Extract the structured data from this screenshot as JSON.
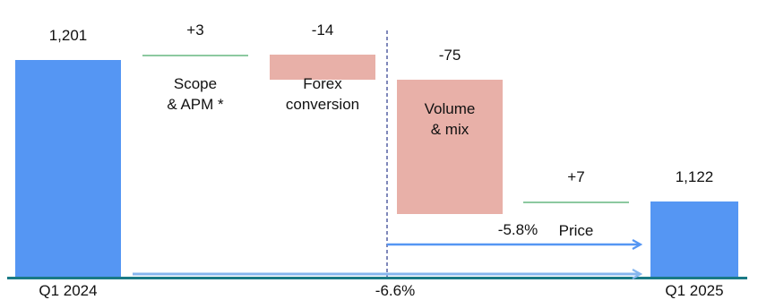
{
  "chart_data": {
    "type": "bar",
    "subtype": "waterfall",
    "categories": [
      "Q1 2024",
      "Scope & APM *",
      "Forex conversion",
      "Volume & mix",
      "Price",
      "Q1 2025"
    ],
    "steps": [
      {
        "label_lines": [
          "Q1 2024"
        ],
        "kind": "total",
        "value": 1201,
        "value_label": "1,201"
      },
      {
        "label_lines": [
          "Scope",
          "& APM *"
        ],
        "kind": "delta",
        "value": 3,
        "value_label": "+3"
      },
      {
        "label_lines": [
          "Forex",
          "conversion"
        ],
        "kind": "delta",
        "value": -14,
        "value_label": "-14"
      },
      {
        "label_lines": [
          "Volume",
          "& mix"
        ],
        "kind": "delta",
        "value": -75,
        "value_label": "-75"
      },
      {
        "label_lines": [
          "Price"
        ],
        "kind": "delta",
        "value": 7,
        "value_label": "+7"
      },
      {
        "label_lines": [
          "Q1 2025"
        ],
        "kind": "total",
        "value": 1122,
        "value_label": "1,122"
      }
    ],
    "y_baseline": 1080,
    "y_top": 1210,
    "grid": false,
    "annotations": [
      {
        "text": "-5.8%",
        "from_step": 3,
        "to_step": 5,
        "kind": "arrow",
        "placement": "upper"
      },
      {
        "text": "-6.6%",
        "from_step": 0,
        "to_step": 5,
        "kind": "arrow",
        "placement": "baseline"
      }
    ],
    "colors": {
      "total": "#5596f3",
      "increase": "#8cc9a0",
      "decrease": "#e8b0a8",
      "arrow": "#5596f3",
      "arrow_light": "#86b6ee",
      "baseline": "#1a7a85",
      "divider": "#2b3a8c"
    }
  }
}
